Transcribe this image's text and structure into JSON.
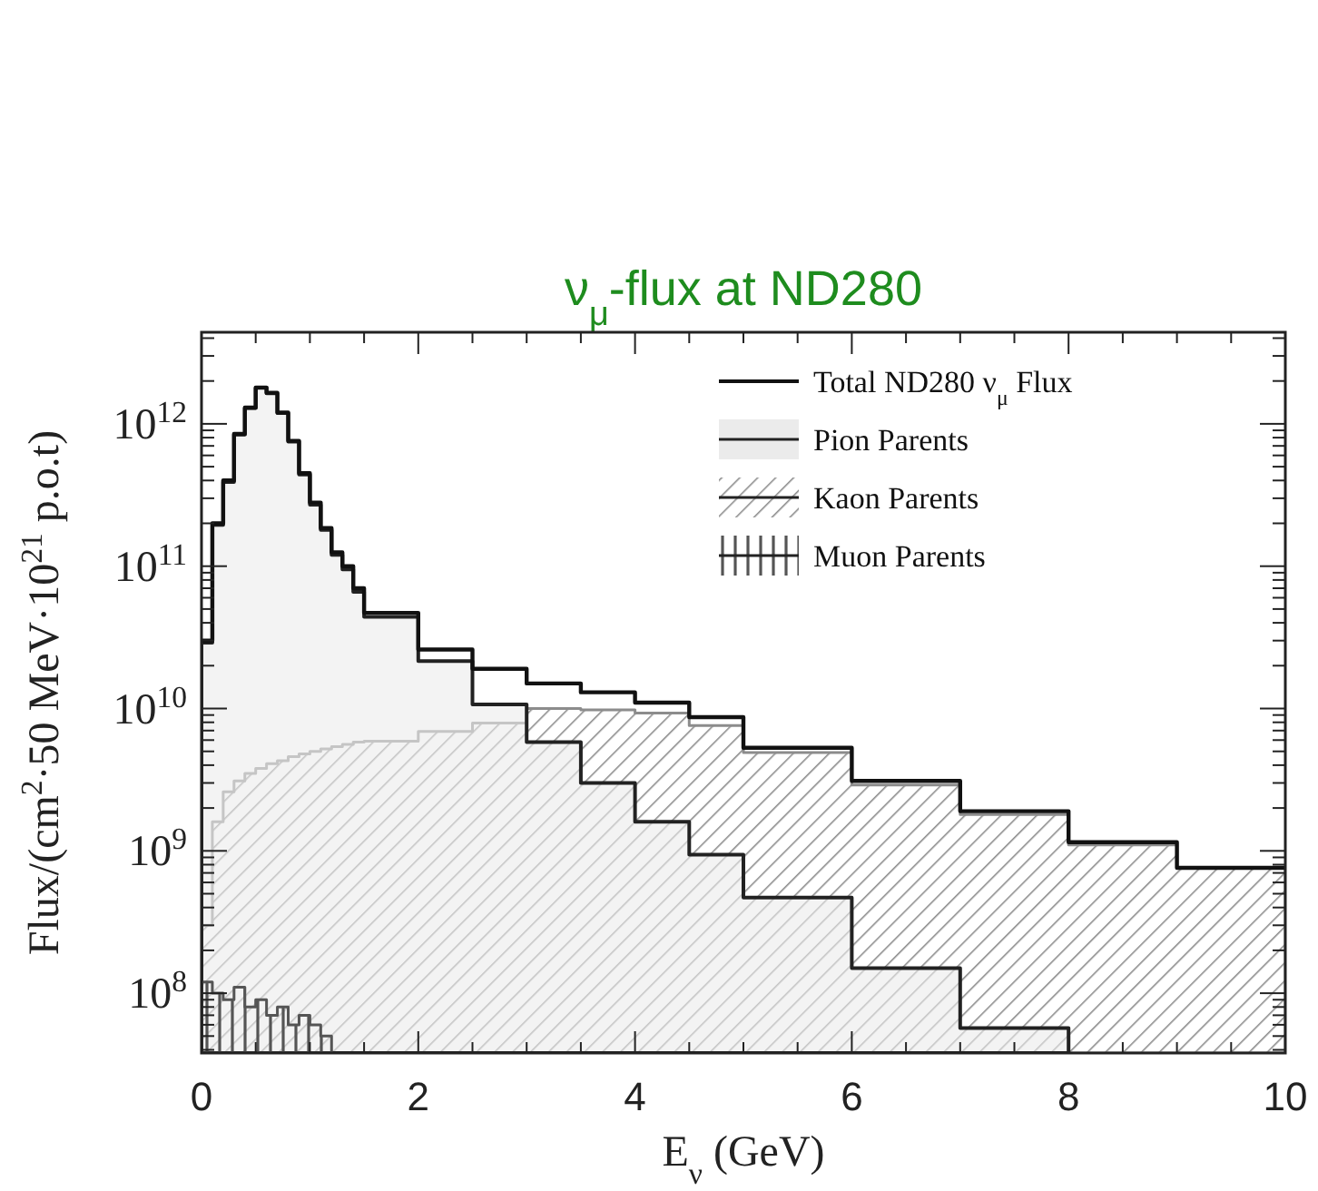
{
  "chart_data": {
    "type": "histogram",
    "title": "ν$_{μ}$-flux at ND280",
    "xlabel": "E$_{ν}$ (GeV)",
    "ylabel": "Flux/(cm$^{2}$·50 MeV·10$^{21}$ p.o.t)",
    "bins": [
      0,
      0.1,
      0.2,
      0.3,
      0.4,
      0.5,
      0.6,
      0.7,
      0.8,
      0.9,
      1.0,
      1.1,
      1.2,
      1.3,
      1.4,
      1.5,
      2,
      2.5,
      3,
      3.5,
      4,
      4.5,
      5,
      6,
      7,
      8,
      9,
      10
    ],
    "series": [
      {
        "name": "Total ND280 ν$_{μ}$ Flux",
        "color": "#111111",
        "values": [
          30000000000.0,
          200000000000.0,
          400000000000.0,
          850000000000.0,
          1300000000000.0,
          1800000000000.0,
          1650000000000.0,
          1200000000000.0,
          760000000000.0,
          450000000000.0,
          280000000000.0,
          185000000000.0,
          125000000000.0,
          100000000000.0,
          70000000000.0,
          47000000000.0,
          26000000000.0,
          19000000000.0,
          15000000000.0,
          13000000000.0,
          11000000000.0,
          8700000000.0,
          5300000000.0,
          3100000000.0,
          1900000000.0,
          1150000000.0,
          760000000.0
        ]
      },
      {
        "name": "Pion Parents",
        "color": "#ebebeb",
        "bins": [
          0,
          0.1,
          0.2,
          0.3,
          0.4,
          0.5,
          0.6,
          0.7,
          0.8,
          0.9,
          1.0,
          1.1,
          1.2,
          1.3,
          1.4,
          1.5,
          2,
          2.5,
          3,
          3.5,
          4,
          4.5,
          5,
          6,
          7,
          8
        ],
        "values": [
          29000000000.0,
          195000000000.0,
          390000000000.0,
          840000000000.0,
          1290000000000.0,
          1790000000000.0,
          1640000000000.0,
          1190000000000.0,
          750000000000.0,
          440000000000.0,
          270000000000.0,
          180000000000.0,
          120000000000.0,
          95000000000.0,
          66000000000.0,
          44000000000.0,
          21500000000.0,
          10700000000.0,
          5800000000.0,
          3000000000.0,
          1600000000.0,
          940000000.0,
          470000000.0,
          150000000.0,
          57000000.0
        ]
      },
      {
        "name": "Kaon Parents",
        "color": "#8c8c8c",
        "values": [
          300000000.0,
          1600000000.0,
          2600000000.0,
          3100000000.0,
          3500000000.0,
          3800000000.0,
          4100000000.0,
          4300000000.0,
          4600000000.0,
          4800000000.0,
          5000000000.0,
          5200000000.0,
          5400000000.0,
          5600000000.0,
          5800000000.0,
          5900000000.0,
          6900000000.0,
          7900000000.0,
          10000000000.0,
          9800000000.0,
          9300000000.0,
          7600000000.0,
          4900000000.0,
          2900000000.0,
          1800000000.0,
          1100000000.0,
          760000000.0
        ]
      },
      {
        "name": "Muon Parents",
        "color": "#555555",
        "bins": [
          0,
          0.1,
          0.2,
          0.3,
          0.4,
          0.5,
          0.6,
          0.7,
          0.8,
          0.9,
          1.0,
          1.1,
          1.2
        ],
        "values": [
          120000000.0,
          100000000.0,
          90000000.0,
          110000000.0,
          80000000.0,
          90000000.0,
          70000000.0,
          80000000.0,
          60000000.0,
          70000000.0,
          60000000.0,
          50000000.0
        ]
      }
    ],
    "xlim": [
      0,
      10
    ],
    "xticks": [
      0,
      2,
      4,
      6,
      8,
      10
    ],
    "ylim": [
      38000000.0,
      4400000000000.0
    ],
    "yticks": [
      {
        "value": 100000000.0,
        "label": "10$^{8}$"
      },
      {
        "value": 1000000000.0,
        "label": "10$^{9}$"
      },
      {
        "value": 10000000000.0,
        "label": "10$^{10}$"
      },
      {
        "value": 100000000000.0,
        "label": "10$^{11}$"
      },
      {
        "value": 1000000000000.0,
        "label": "10$^{12}$"
      }
    ],
    "log": "y",
    "legend": "top right"
  }
}
